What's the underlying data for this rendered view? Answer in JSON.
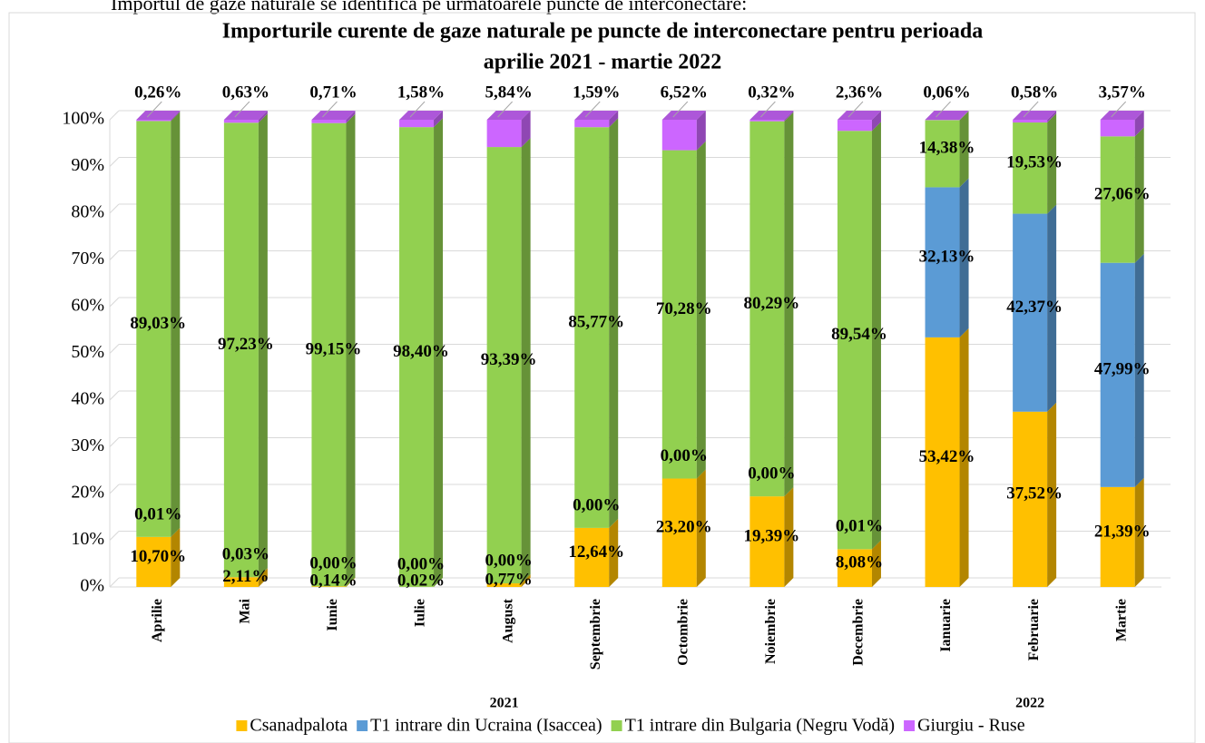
{
  "header_text": "Importul de gaze naturale se identifică pe următoarele puncte de interconectare:",
  "chart_data": {
    "type": "bar_stacked_3d",
    "title": [
      "Importurile curente de gaze naturale pe puncte de interconectare pentru perioada",
      "aprilie 2021 - martie 2022"
    ],
    "categories": [
      "Aprilie",
      "Mai",
      "Iunie",
      "Iulie",
      "August",
      "Septembrie",
      "Octombrie",
      "Noiembrie",
      "Decembrie",
      "Ianuarie",
      "Februarie",
      "Martie"
    ],
    "year_labels": [
      "2021",
      "2022"
    ],
    "ylim": [
      0,
      100
    ],
    "yticks": [
      {
        "value": 0,
        "label": "0%"
      },
      {
        "value": 10,
        "label": "10%"
      },
      {
        "value": 20,
        "label": "20%"
      },
      {
        "value": 30,
        "label": "30%"
      },
      {
        "value": 40,
        "label": "40%"
      },
      {
        "value": 50,
        "label": "50%"
      },
      {
        "value": 60,
        "label": "60%"
      },
      {
        "value": 70,
        "label": "70%"
      },
      {
        "value": 80,
        "label": "80%"
      },
      {
        "value": 90,
        "label": "90%"
      },
      {
        "value": 100,
        "label": "100%"
      }
    ],
    "grid": true,
    "legend": "bottom",
    "series": [
      {
        "name": "Csanadpalota",
        "color": "#FFC000",
        "values": [
          10.7,
          2.11,
          0.14,
          0.02,
          0.77,
          12.64,
          23.2,
          19.39,
          8.08,
          53.42,
          37.52,
          21.39
        ],
        "value_labels": [
          "10,70%",
          "2,11%",
          "0,14%",
          "0,02%",
          "0,77%",
          "12,64%",
          "23,20%",
          "19,39%",
          "8,08%",
          "53,42%",
          "37,52%",
          "21,39%"
        ]
      },
      {
        "name": "T1 intrare din Ucraina (Isaccea)",
        "color": "#5B9BD5",
        "values": [
          0.01,
          0.03,
          0.0,
          0.0,
          0.0,
          0.0,
          0.0,
          0.0,
          0.01,
          32.13,
          42.37,
          47.99
        ],
        "value_labels": [
          "0,01%",
          "0,03%",
          "0,00%",
          "0,00%",
          "0,00%",
          "0,00%",
          "0,00%",
          "0,00%",
          "0,01%",
          "32,13%",
          "42,37%",
          "47,99%"
        ]
      },
      {
        "name": "T1 intrare din Bulgaria (Negru Vodă)",
        "color": "#92D050",
        "values": [
          89.03,
          97.23,
          99.15,
          98.4,
          93.39,
          85.77,
          70.28,
          80.29,
          89.54,
          14.38,
          19.53,
          27.06
        ],
        "value_labels": [
          "89,03%",
          "97,23%",
          "99,15%",
          "98,40%",
          "93,39%",
          "85,77%",
          "70,28%",
          "80,29%",
          "89,54%",
          "14,38%",
          "19,53%",
          "27,06%"
        ]
      },
      {
        "name": "Giurgiu - Ruse",
        "color": "#CC66FF",
        "values": [
          0.26,
          0.63,
          0.71,
          1.58,
          5.84,
          1.59,
          6.52,
          0.32,
          2.36,
          0.06,
          0.58,
          3.57
        ],
        "value_labels": [
          "0,26%",
          "0,63%",
          "0,71%",
          "1,58%",
          "5,84%",
          "1,59%",
          "6,52%",
          "0,32%",
          "2,36%",
          "0,06%",
          "0,58%",
          "3,57%"
        ]
      }
    ]
  }
}
